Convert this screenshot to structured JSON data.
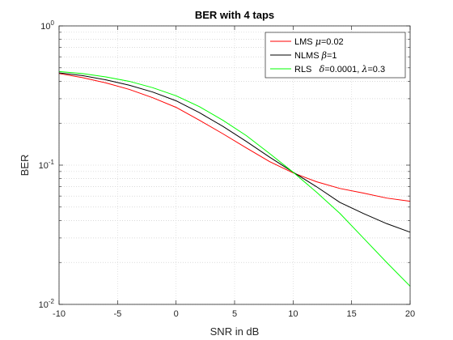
{
  "chart_data": {
    "type": "line",
    "title": "BER with 4 taps",
    "xlabel": "SNR in dB",
    "ylabel": "BER",
    "xlim": [
      -10,
      20
    ],
    "ylim": [
      0.01,
      1
    ],
    "yscale": "log",
    "grid": true,
    "minor_grid": true,
    "legend_position": "top-right",
    "x_ticks": [
      -10,
      -5,
      0,
      5,
      10,
      15,
      20
    ],
    "x_tick_labels": [
      "-10",
      "-5",
      "0",
      "5",
      "10",
      "15",
      "20"
    ],
    "y_ticks": [
      0.01,
      0.1,
      1
    ],
    "y_tick_labels": [
      {
        "base": "10",
        "exp": "-2"
      },
      {
        "base": "10",
        "exp": "-1"
      },
      {
        "base": "10",
        "exp": "0"
      }
    ],
    "x": [
      -10,
      -8,
      -6,
      -4,
      -2,
      0,
      2,
      4,
      6,
      8,
      10,
      12,
      14,
      16,
      18,
      20
    ],
    "series": [
      {
        "name": "LMS",
        "legend_parts": [
          {
            "text": "LMS ",
            "symbol": false
          },
          {
            "text": "μ",
            "symbol": true
          },
          {
            "text": "=0.02",
            "symbol": false
          }
        ],
        "color": "#ff0000",
        "values": [
          0.455,
          0.425,
          0.39,
          0.35,
          0.305,
          0.26,
          0.21,
          0.168,
          0.133,
          0.106,
          0.088,
          0.076,
          0.068,
          0.063,
          0.058,
          0.055
        ]
      },
      {
        "name": "NLMS",
        "legend_parts": [
          {
            "text": "NLMS ",
            "symbol": false
          },
          {
            "text": "β",
            "symbol": true
          },
          {
            "text": "=1",
            "symbol": false
          }
        ],
        "color": "#000000",
        "values": [
          0.46,
          0.44,
          0.41,
          0.375,
          0.335,
          0.29,
          0.238,
          0.19,
          0.148,
          0.114,
          0.089,
          0.07,
          0.054,
          0.045,
          0.038,
          0.033
        ]
      },
      {
        "name": "RLS",
        "legend_parts": [
          {
            "text": "RLS   ",
            "symbol": false
          },
          {
            "text": "δ",
            "symbol": true
          },
          {
            "text": "=0.0001, ",
            "symbol": false
          },
          {
            "text": "λ",
            "symbol": true
          },
          {
            "text": "=0.3",
            "symbol": false
          }
        ],
        "color": "#00ff00",
        "values": [
          0.47,
          0.455,
          0.43,
          0.4,
          0.36,
          0.315,
          0.263,
          0.21,
          0.163,
          0.121,
          0.089,
          0.064,
          0.045,
          0.03,
          0.02,
          0.0135
        ]
      }
    ]
  }
}
